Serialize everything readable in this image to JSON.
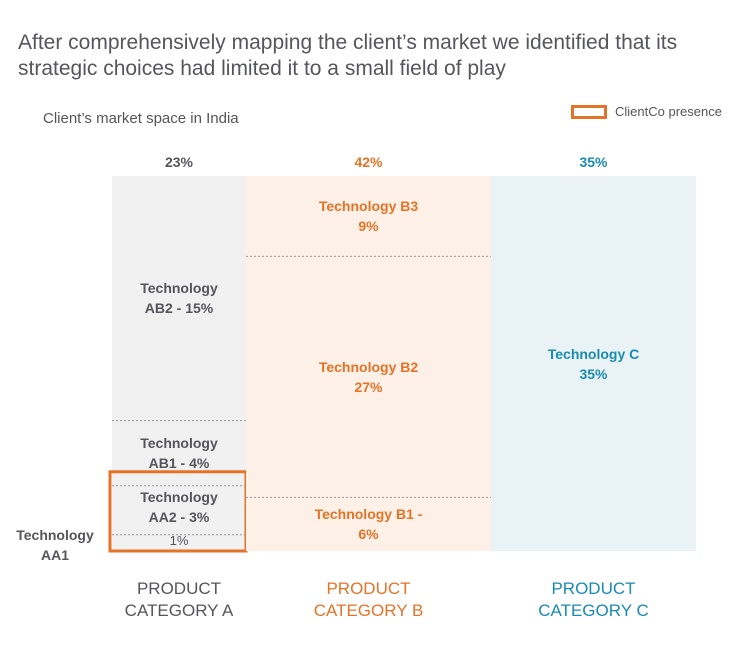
{
  "headline": "After comprehensively mapping the client’s market we identified that its strategic choices had limited it to a small field of play",
  "chart_data": {
    "type": "mekko",
    "title": "Client’s market space in India",
    "legend": {
      "label": "ClientCo presence",
      "color": "#e47328",
      "placement": "top-right"
    },
    "colors": {
      "a": "#55565a",
      "b": "#e47328",
      "c": "#1a8bb0"
    },
    "columns": [
      {
        "key": "a",
        "category": "PRODUCT\nCATEGORY A",
        "share": 23,
        "share_label": "23%",
        "segments": [
          {
            "name": "Technology AA1",
            "value": 1,
            "label_line1": "Technology",
            "label_line2": "AA1",
            "value_label": "1%",
            "client_presence": true
          },
          {
            "name": "Technology AA2",
            "value": 3,
            "label_line1": "Technology",
            "label_line2": "AA2 - 3%",
            "client_presence": true
          },
          {
            "name": "Technology AB1",
            "value": 4,
            "label_line1": "Technology",
            "label_line2": "AB1 -  4%",
            "client_presence": false
          },
          {
            "name": "Technology AB2",
            "value": 15,
            "label_line1": "Technology",
            "label_line2": "AB2 -  15%",
            "client_presence": false
          }
        ]
      },
      {
        "key": "b",
        "category": "PRODUCT\nCATEGORY B",
        "share": 42,
        "share_label": "42%",
        "segments": [
          {
            "name": "Technology B1",
            "value": 6,
            "label_line1": "Technology B1 -",
            "label_line2": "6%",
            "client_presence": false
          },
          {
            "name": "Technology B2",
            "value": 27,
            "label_line1": "Technology B2",
            "label_line2": "27%",
            "client_presence": false
          },
          {
            "name": "Technology B3",
            "value": 9,
            "label_line1": "Technology B3",
            "label_line2": "9%",
            "client_presence": false
          }
        ]
      },
      {
        "key": "c",
        "category": "PRODUCT\nCATEGORY C",
        "share": 35,
        "share_label": "35%",
        "segments": [
          {
            "name": "Technology C",
            "value": 35,
            "label_line1": "Technology C",
            "label_line2": "35%",
            "client_presence": false
          }
        ]
      }
    ]
  }
}
